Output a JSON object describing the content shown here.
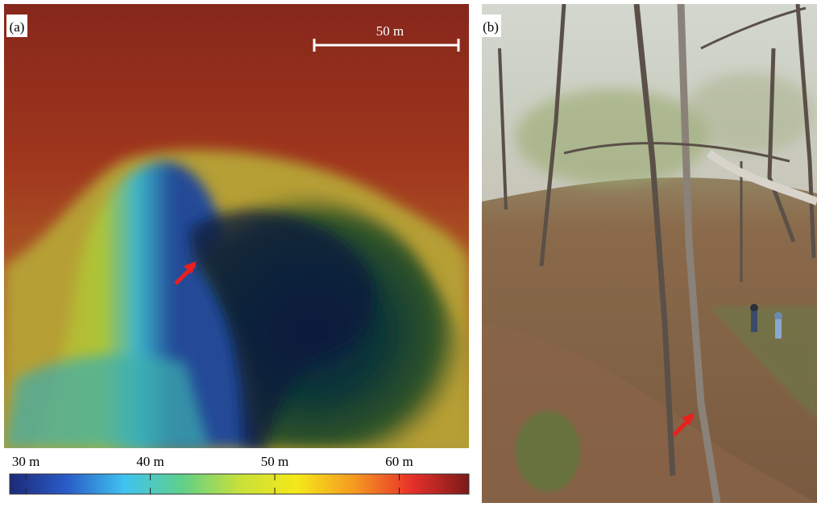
{
  "panels": [
    {
      "label": "(a)",
      "scale_bar": "50 m",
      "colorbar": {
        "lim": [
          28.7,
          65.6
        ],
        "colors": [
          "#1c2a78",
          "#2a5cc8",
          "#3fc3f0",
          "#5fd08a",
          "#c8e03a",
          "#f5e81a",
          "#f59a20",
          "#e8302a",
          "#7a1a1a"
        ],
        "ticks": [
          {
            "value": 30,
            "label": "30 m"
          },
          {
            "value": 40,
            "label": "40 m"
          },
          {
            "value": 50,
            "label": "50 m"
          },
          {
            "value": 60,
            "label": "60 m"
          }
        ]
      }
    },
    {
      "label": "(b)"
    }
  ]
}
